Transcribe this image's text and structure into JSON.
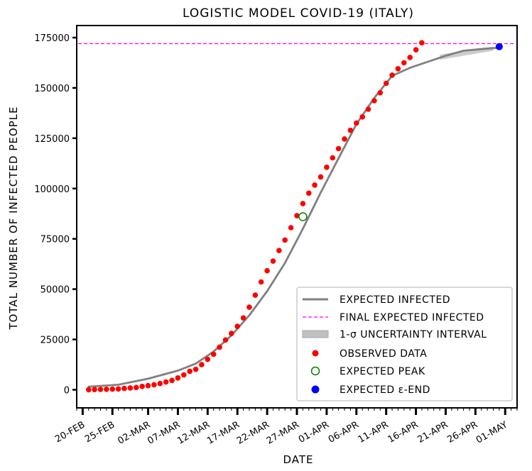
{
  "chart_data": {
    "type": "line",
    "title": "LOGISTIC MODEL COVID-19 (ITALY)",
    "xlabel": "DATE",
    "ylabel": "TOTAL NUMBER OF INFECTED PEOPLE",
    "x_range": [
      "2020-02-19",
      "2020-05-03"
    ],
    "ylim": [
      -9000,
      181000
    ],
    "y_ticks": [
      0,
      25000,
      50000,
      75000,
      100000,
      125000,
      150000,
      175000
    ],
    "y_tick_labels": [
      "0",
      "25000",
      "50000",
      "75000",
      "100000",
      "125000",
      "150000",
      "175000"
    ],
    "x_ticks": [
      "2020-02-20",
      "2020-02-25",
      "2020-03-02",
      "2020-03-07",
      "2020-03-12",
      "2020-03-17",
      "2020-03-22",
      "2020-03-27",
      "2020-04-01",
      "2020-04-06",
      "2020-04-11",
      "2020-04-16",
      "2020-04-21",
      "2020-04-26",
      "2020-05-01"
    ],
    "x_tick_labels": [
      "20-FEB",
      "25-FEB",
      "02-MAR",
      "07-MAR",
      "12-MAR",
      "17-MAR",
      "22-MAR",
      "27-MAR",
      "01-APR",
      "06-APR",
      "11-APR",
      "16-APR",
      "21-APR",
      "26-APR",
      "01-MAY"
    ],
    "legend_position": "lower-right",
    "series": [
      {
        "name": "EXPECTED INFECTED",
        "kind": "line",
        "color": "#808080",
        "x": [
          "2020-02-21",
          "2020-02-26",
          "2020-03-02",
          "2020-03-07",
          "2020-03-10",
          "2020-03-13",
          "2020-03-16",
          "2020-03-19",
          "2020-03-22",
          "2020-03-25",
          "2020-03-28",
          "2020-03-31",
          "2020-04-03",
          "2020-04-06",
          "2020-04-09",
          "2020-04-12",
          "2020-04-15",
          "2020-04-18",
          "2020-04-21",
          "2020-04-24",
          "2020-04-27",
          "2020-04-30"
        ],
        "y": [
          1500,
          2500,
          5500,
          9500,
          13000,
          19000,
          27000,
          37000,
          49000,
          63000,
          80000,
          98000,
          115000,
          132000,
          145000,
          156000,
          160000,
          163000,
          166000,
          168500,
          169300,
          170000
        ]
      },
      {
        "name": "FINAL EXPECTED INFECTED",
        "kind": "hline",
        "color": "#ff00ff",
        "y": 172000
      },
      {
        "name": "1-σ UNCERTAINTY INTERVAL",
        "kind": "band",
        "color": "#c0c0c0",
        "x": [
          "2020-04-20",
          "2020-04-23",
          "2020-04-26",
          "2020-04-29"
        ],
        "y_low": [
          164000,
          165500,
          167000,
          168500
        ],
        "y_high": [
          166500,
          168000,
          169500,
          170500
        ]
      },
      {
        "name": "OBSERVED DATA",
        "kind": "scatter",
        "color": "#ff0000",
        "x": [
          "2020-02-21",
          "2020-02-22",
          "2020-02-23",
          "2020-02-24",
          "2020-02-25",
          "2020-02-26",
          "2020-02-27",
          "2020-02-28",
          "2020-02-29",
          "2020-03-01",
          "2020-03-02",
          "2020-03-03",
          "2020-03-04",
          "2020-03-05",
          "2020-03-06",
          "2020-03-07",
          "2020-03-08",
          "2020-03-09",
          "2020-03-10",
          "2020-03-11",
          "2020-03-12",
          "2020-03-13",
          "2020-03-14",
          "2020-03-15",
          "2020-03-16",
          "2020-03-17",
          "2020-03-18",
          "2020-03-19",
          "2020-03-20",
          "2020-03-21",
          "2020-03-22",
          "2020-03-23",
          "2020-03-24",
          "2020-03-25",
          "2020-03-26",
          "2020-03-27",
          "2020-03-28",
          "2020-03-29",
          "2020-03-30",
          "2020-03-31",
          "2020-04-01",
          "2020-04-02",
          "2020-04-03",
          "2020-04-04",
          "2020-04-05",
          "2020-04-06",
          "2020-04-07",
          "2020-04-08",
          "2020-04-09",
          "2020-04-10",
          "2020-04-11",
          "2020-04-12",
          "2020-04-13",
          "2020-04-14",
          "2020-04-15",
          "2020-04-16",
          "2020-04-17"
        ],
        "y": [
          20,
          79,
          150,
          229,
          322,
          400,
          650,
          888,
          1128,
          1694,
          2036,
          2502,
          3089,
          3858,
          4636,
          5883,
          7375,
          9172,
          10149,
          12462,
          15113,
          17660,
          21157,
          24747,
          27980,
          31506,
          35713,
          41035,
          47021,
          53578,
          59138,
          63927,
          69176,
          74386,
          80539,
          86498,
          92472,
          97689,
          101739,
          105792,
          110574,
          115242,
          119827,
          124632,
          128948,
          132547,
          135586,
          139422,
          143626,
          147577,
          152271,
          156363,
          159516,
          162488,
          165155,
          168941,
          172434
        ]
      },
      {
        "name": "EXPECTED PEAK",
        "kind": "marker",
        "color": "#008000",
        "x": [
          "2020-03-28"
        ],
        "y": [
          86000
        ]
      },
      {
        "name": "EXPECTED ε-END",
        "kind": "marker",
        "color": "#0000ff",
        "x": [
          "2020-04-30"
        ],
        "y": [
          170500
        ]
      }
    ]
  }
}
